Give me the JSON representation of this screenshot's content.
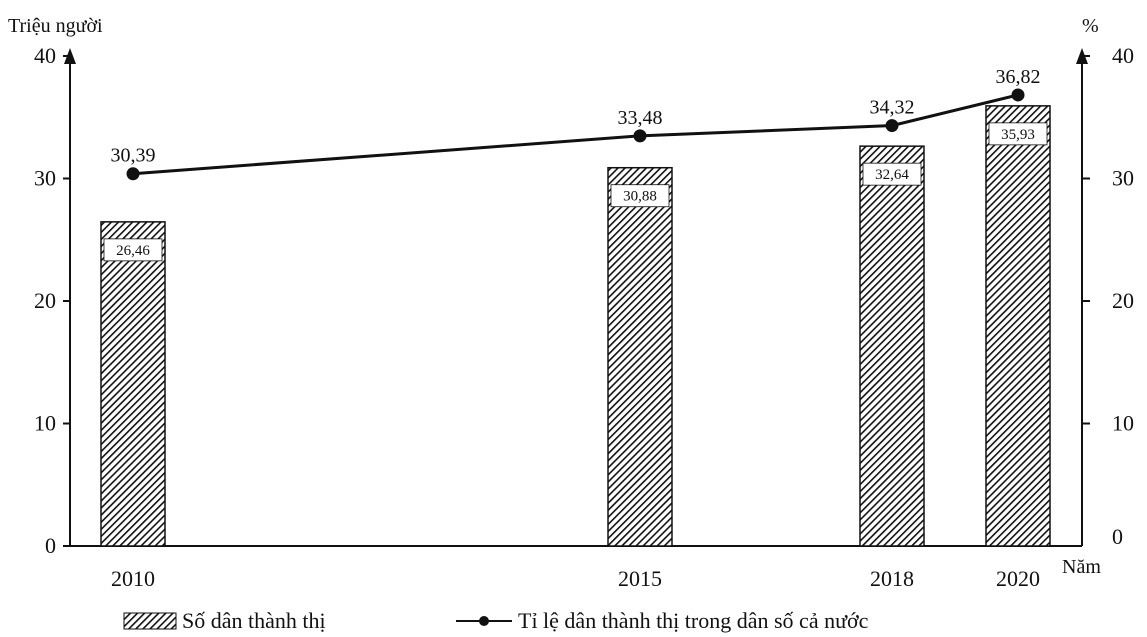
{
  "chart_data": {
    "type": "bar+line",
    "categories": [
      "2010",
      "2015",
      "2018",
      "2020"
    ],
    "x_unit_label": "Năm",
    "left_axis": {
      "unit_label": "Triệu người",
      "range": [
        0,
        40
      ],
      "ticks": [
        "0",
        "10",
        "20",
        "30",
        "40"
      ]
    },
    "right_axis": {
      "unit_label": "%",
      "range": [
        0,
        40
      ],
      "ticks": [
        "0",
        "10",
        "20",
        "30",
        "40"
      ]
    },
    "series": [
      {
        "name": "Số dân thành thị",
        "kind": "bar",
        "axis": "left",
        "values": [
          26.46,
          30.88,
          32.64,
          35.93
        ],
        "labels": [
          "26,46",
          "30,88",
          "32,64",
          "35,93"
        ],
        "pattern": "diagonal-hatch"
      },
      {
        "name": "Tỉ lệ dân thành thị trong dân số cả nước",
        "kind": "line",
        "axis": "right",
        "values": [
          30.39,
          33.48,
          34.32,
          36.82
        ],
        "labels": [
          "30,39",
          "33,48",
          "34,32",
          "36,82"
        ]
      }
    ],
    "grid": false,
    "legend_position": "bottom-center",
    "colors": {
      "ink": "#111111",
      "background": "#ffffff"
    }
  }
}
